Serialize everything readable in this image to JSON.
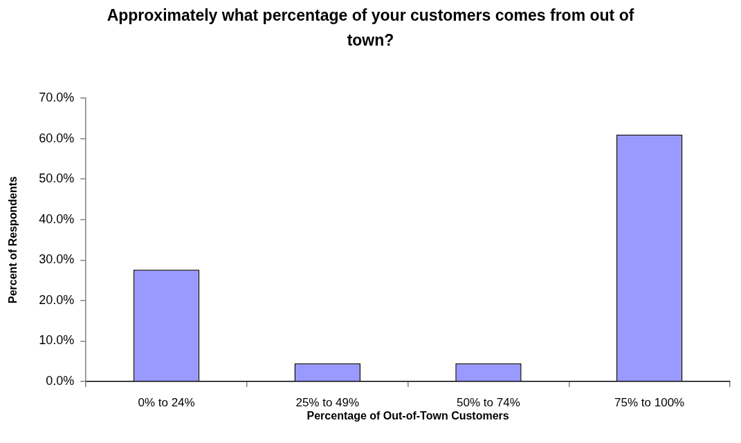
{
  "chart_data": {
    "type": "bar",
    "title": "Approximately what percentage of your customers comes from out of town?",
    "xlabel": "Percentage of Out-of-Town Customers",
    "ylabel": "Percent of Respondents",
    "categories": [
      "0% to 24%",
      "25% to 49%",
      "50% to 74%",
      "75% to 100%"
    ],
    "values": [
      27.6,
      4.5,
      4.5,
      61.0
    ],
    "color": "#9999ff",
    "ylim": [
      0,
      70
    ],
    "yticks": [
      {
        "value": 0,
        "label": "0.0%"
      },
      {
        "value": 10,
        "label": "10.0%"
      },
      {
        "value": 20,
        "label": "20.0%"
      },
      {
        "value": 30,
        "label": "30.0%"
      },
      {
        "value": 40,
        "label": "40.0%"
      },
      {
        "value": 50,
        "label": "50.0%"
      },
      {
        "value": 60,
        "label": "60.0%"
      },
      {
        "value": 70,
        "label": "70.0%"
      }
    ]
  }
}
